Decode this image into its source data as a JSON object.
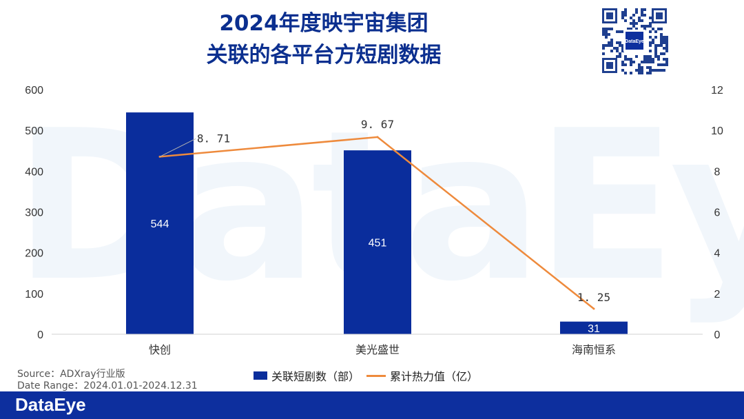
{
  "header": {
    "title_line1": "2024年度映宇宙集团",
    "title_line2": "关联的各平台方短剧数据"
  },
  "watermark": "DataEye",
  "qr_code": {
    "badge_text": "DataEye"
  },
  "colors": {
    "bar": "#0a2d9c",
    "line": "#ee8a3c",
    "title": "#0b2f8f",
    "footer": "#0d2f9e"
  },
  "chart_data": {
    "type": "bar",
    "categories": [
      "快创",
      "美光盛世",
      "海南恒系"
    ],
    "series": [
      {
        "name": "关联短剧数（部）",
        "type": "bar",
        "axis": "left",
        "values": [
          544,
          451,
          31
        ]
      },
      {
        "name": "累计热力值（亿）",
        "type": "line",
        "axis": "right",
        "values": [
          8.71,
          9.67,
          1.25
        ]
      }
    ],
    "y_left": {
      "min": 0,
      "max": 600,
      "ticks": [
        0,
        100,
        200,
        300,
        400,
        500,
        600
      ]
    },
    "y_right": {
      "min": 0,
      "max": 12,
      "ticks": [
        0,
        2,
        4,
        6,
        8,
        10,
        12
      ]
    },
    "line_labels": [
      "8. 71",
      "9. 67",
      "1. 25"
    ],
    "legend_position": "bottom",
    "grid": false
  },
  "legend": {
    "bar_label": "关联短剧数（部）",
    "line_label": "累计热力值（亿）"
  },
  "source": {
    "line1": "Source：ADXray行业版",
    "line2": "Date Range：2024.01.01-2024.12.31"
  },
  "footer": {
    "brand": "DataEye"
  }
}
